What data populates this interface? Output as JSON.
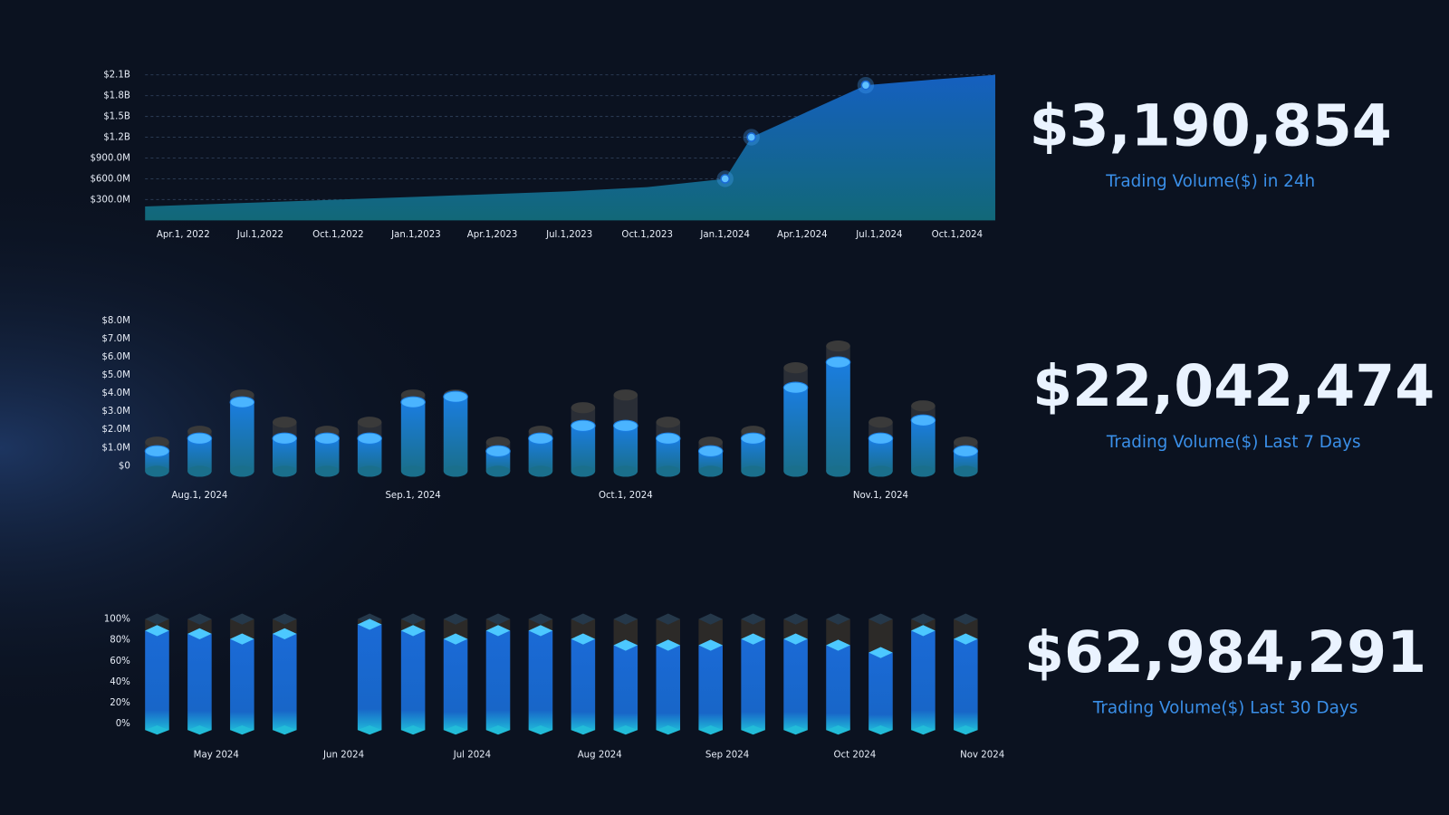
{
  "chart_data": [
    {
      "type": "area",
      "x": [
        "2022-02-15",
        "2022-07-01",
        "2023-01-01",
        "2023-07-01",
        "2023-10-01",
        "2024-01-01",
        "2024-02-01",
        "2024-06-15",
        "2024-09-01",
        "2024-11-15"
      ],
      "values": [
        200000000,
        260000000,
        340000000,
        420000000,
        480000000,
        600000000,
        1200000000,
        1950000000,
        2030000000,
        2100000000
      ],
      "highlight": [
        5,
        6,
        7
      ],
      "color": "#1560c0",
      "xlim": [
        "2022-02-15",
        "2024-11-15"
      ],
      "xticks": [
        {
          "value": "2022-04-01",
          "label": "Apr.1, 2022"
        },
        {
          "value": "2022-07-01",
          "label": "Jul.1,2022"
        },
        {
          "value": "2022-10-01",
          "label": "Oct.1,2022"
        },
        {
          "value": "2023-01-01",
          "label": "Jan.1,2023"
        },
        {
          "value": "2023-04-01",
          "label": "Apr.1,2023"
        },
        {
          "value": "2023-07-01",
          "label": "Jul.1,2023"
        },
        {
          "value": "2023-10-01",
          "label": "Oct.1,2023"
        },
        {
          "value": "2024-01-01",
          "label": "Jan.1,2024"
        },
        {
          "value": "2024-04-01",
          "label": "Apr.1,2024"
        },
        {
          "value": "2024-07-01",
          "label": "Jul.1,2024"
        },
        {
          "value": "2024-10-01",
          "label": "Oct.1,2024"
        }
      ],
      "ylim": [
        0,
        2100000000
      ],
      "yticks": [
        {
          "value": 300000000,
          "label": "$300.0M"
        },
        {
          "value": 600000000,
          "label": "$600.0M"
        },
        {
          "value": 900000000,
          "label": "$900.0M"
        },
        {
          "value": 1200000000,
          "label": "$1.2B"
        },
        {
          "value": 1500000000,
          "label": "$1.5B"
        },
        {
          "value": 1800000000,
          "label": "$1.8B"
        },
        {
          "value": 2100000000,
          "label": "$2.1B"
        }
      ],
      "grid": true
    },
    {
      "type": "cylinder",
      "categories": [
        null,
        "Aug.1, 2024",
        null,
        null,
        null,
        null,
        "Sep.1, 2024",
        null,
        null,
        null,
        null,
        "Oct.1, 2024",
        null,
        null,
        null,
        null,
        null,
        "Nov.1, 2024",
        null,
        null
      ],
      "values": [
        800000,
        1500000,
        3500000,
        1500000,
        1500000,
        1500000,
        3500000,
        3800000,
        800000,
        1500000,
        2200000,
        2200000,
        1500000,
        800000,
        1500000,
        4300000,
        5700000,
        1500000,
        2500000,
        800000
      ],
      "max_values": [
        1300000,
        1900000,
        3900000,
        2400000,
        1900000,
        2400000,
        3900000,
        3900000,
        1300000,
        1900000,
        3200000,
        3900000,
        2400000,
        1300000,
        1900000,
        5400000,
        6600000,
        2400000,
        3300000,
        1300000
      ],
      "color": "#1a7de0",
      "ylim": [
        0,
        8000000
      ],
      "yticks": [
        {
          "value": 0,
          "label": "$0"
        },
        {
          "value": 1000000,
          "label": "$1.0M"
        },
        {
          "value": 2000000,
          "label": "$2.0M"
        },
        {
          "value": 3000000,
          "label": "$3.0M"
        },
        {
          "value": 4000000,
          "label": "$4.0M"
        },
        {
          "value": 5000000,
          "label": "$5.0M"
        },
        {
          "value": 6000000,
          "label": "$6.0M"
        },
        {
          "value": 7000000,
          "label": "$7.0M"
        },
        {
          "value": 8000000,
          "label": "$8.0M"
        }
      ]
    },
    {
      "type": "prism",
      "categories": [
        null,
        "May 2024",
        null,
        null,
        "Jun 2024",
        null,
        null,
        "Jul 2024",
        null,
        null,
        "Aug 2024",
        null,
        null,
        "Sep 2024",
        null,
        null,
        "Oct 2024",
        null,
        null,
        "Nov 2024"
      ],
      "values": [
        89,
        86,
        81,
        86,
        null,
        95,
        89,
        81,
        89,
        89,
        81,
        75,
        75,
        75,
        81,
        81,
        75,
        68,
        89,
        81
      ],
      "max_values": [
        100,
        100,
        100,
        100,
        null,
        100,
        100,
        100,
        100,
        100,
        100,
        100,
        100,
        100,
        100,
        100,
        100,
        100,
        100,
        100
      ],
      "color": "#1a6fd8",
      "ylim": [
        0,
        100
      ],
      "yticks": [
        {
          "value": 0,
          "label": "0%"
        },
        {
          "value": 20,
          "label": "20%"
        },
        {
          "value": 40,
          "label": "40%"
        },
        {
          "value": 60,
          "label": "60%"
        },
        {
          "value": 80,
          "label": "80%"
        },
        {
          "value": 100,
          "label": "100%"
        }
      ]
    }
  ],
  "stats": [
    {
      "value": "$3,190,854",
      "label": "Trading Volume($) in 24h"
    },
    {
      "value": "$22,042,474",
      "label": "Trading Volume($) Last 7 Days"
    },
    {
      "value": "$62,984,291",
      "label": "Trading Volume($) Last 30 Days"
    }
  ]
}
